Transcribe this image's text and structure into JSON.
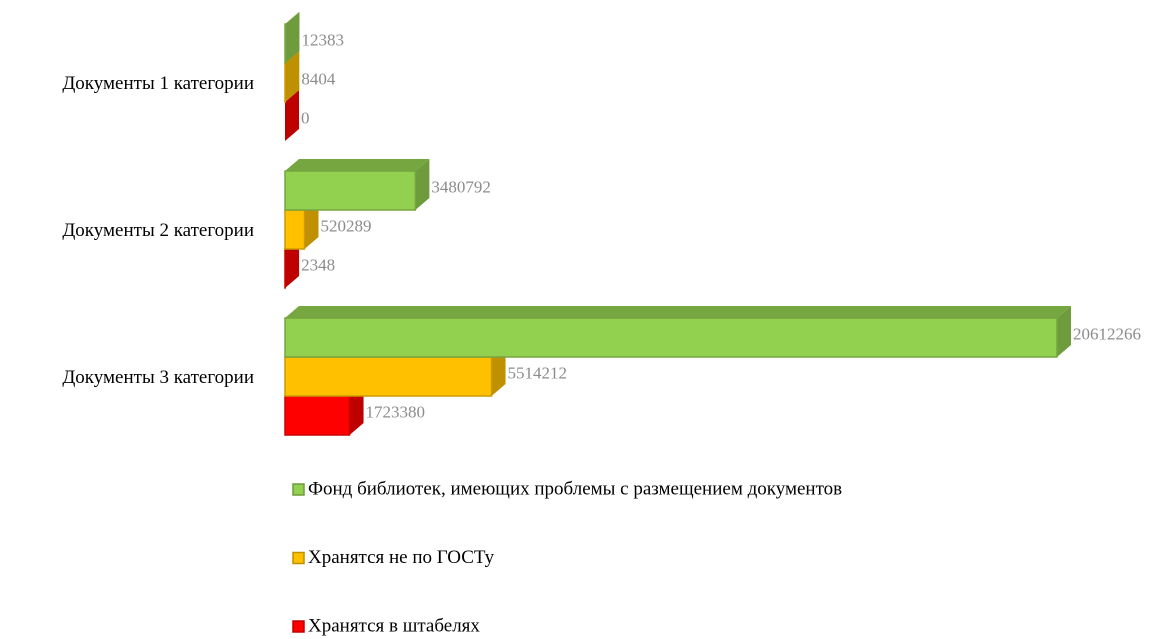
{
  "chart_data": {
    "type": "bar3d-horizontal",
    "categories": [
      "Документы 1 категории",
      "Документы 2 категории",
      "Документы 3 категории"
    ],
    "series": [
      {
        "name": "Фонд библиотек, имеющих проблемы с размещением документов",
        "color": "#92d050",
        "values": [
          12383,
          3480792,
          20612266
        ]
      },
      {
        "name": "Хранятся не по ГОСТу",
        "color": "#ffc000",
        "values": [
          8404,
          520289,
          5514212
        ]
      },
      {
        "name": "Хранятся в штабелях",
        "color": "#ff0000",
        "values": [
          0,
          2348,
          1723380
        ]
      }
    ],
    "legend": "bottom"
  }
}
